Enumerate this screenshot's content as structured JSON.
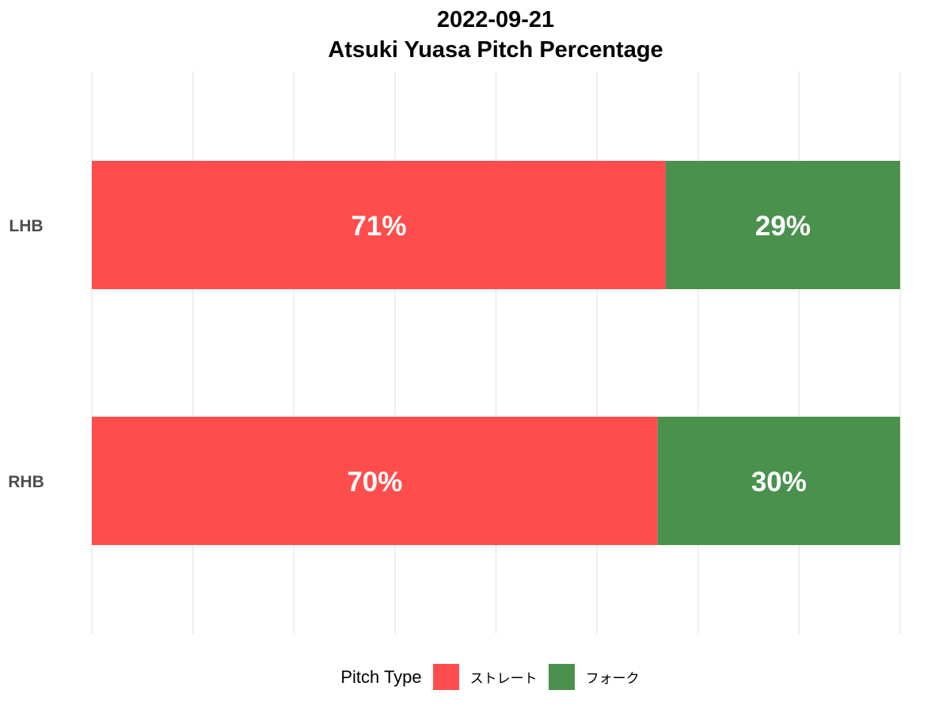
{
  "chart_data": {
    "type": "bar",
    "orientation": "horizontal",
    "stacked": true,
    "title": "2022-09-21",
    "subtitle": "Atsuki Yuasa Pitch Percentage",
    "categories": [
      "LHB",
      "RHB"
    ],
    "series": [
      {
        "name": "ストレート",
        "values": [
          71,
          70
        ],
        "labels": [
          "71%",
          "70%"
        ],
        "color": "#ff4d4d"
      },
      {
        "name": "フォーク",
        "values": [
          29,
          30
        ],
        "labels": [
          "29%",
          "30%"
        ],
        "color": "#4a914d"
      }
    ],
    "xlim": [
      0,
      100
    ],
    "grid": true,
    "legend": {
      "title": "Pitch Type",
      "position": "bottom"
    }
  }
}
